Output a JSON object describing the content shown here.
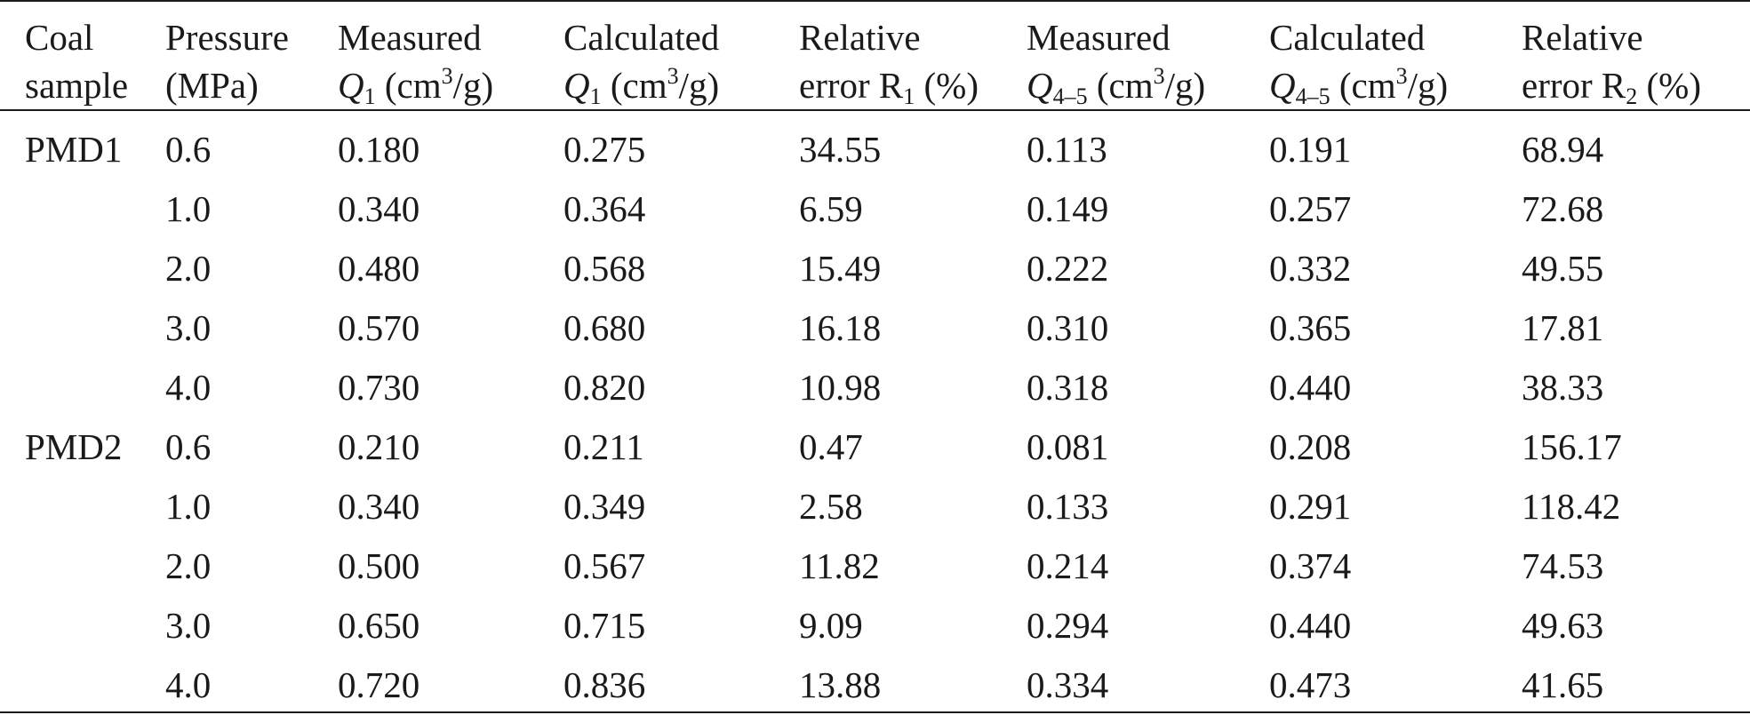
{
  "table": {
    "header": {
      "coal_sample": [
        "Coal",
        "sample"
      ],
      "pressure": [
        "Pressure",
        "(MPa)"
      ],
      "measured_q1": {
        "line1": "Measured",
        "sym": "Q",
        "sub": "1",
        "unit_pre": " (cm",
        "sup": "3",
        "unit_post": "/g)"
      },
      "calculated_q1": {
        "line1": "Calculated",
        "sym": "Q",
        "sub": "1",
        "unit_pre": " (cm",
        "sup": "3",
        "unit_post": "/g)"
      },
      "relative_error_r1": {
        "line1": "Relative",
        "pre": "error R",
        "sub": "1",
        "post": " (%)"
      },
      "measured_q45": {
        "line1": "Measured",
        "sym": "Q",
        "sub": "4–5",
        "unit_pre": " (cm",
        "sup": "3",
        "unit_post": "/g)"
      },
      "calculated_q45": {
        "line1": "Calculated",
        "sym": "Q",
        "sub": "4–5",
        "unit_pre": " (cm",
        "sup": "3",
        "unit_post": "/g)"
      },
      "relative_error_r2": {
        "line1": "Relative",
        "pre": "error R",
        "sub": "2",
        "post": " (%)"
      }
    },
    "rows": [
      [
        "PMD1",
        "0.6",
        "0.180",
        "0.275",
        "34.55",
        "0.113",
        "0.191",
        "68.94"
      ],
      [
        "",
        "1.0",
        "0.340",
        "0.364",
        "6.59",
        "0.149",
        "0.257",
        "72.68"
      ],
      [
        "",
        "2.0",
        "0.480",
        "0.568",
        "15.49",
        "0.222",
        "0.332",
        "49.55"
      ],
      [
        "",
        "3.0",
        "0.570",
        "0.680",
        "16.18",
        "0.310",
        "0.365",
        "17.81"
      ],
      [
        "",
        "4.0",
        "0.730",
        "0.820",
        "10.98",
        "0.318",
        "0.440",
        "38.33"
      ],
      [
        "PMD2",
        "0.6",
        "0.210",
        "0.211",
        "0.47",
        "0.081",
        "0.208",
        "156.17"
      ],
      [
        "",
        "1.0",
        "0.340",
        "0.349",
        "2.58",
        "0.133",
        "0.291",
        "118.42"
      ],
      [
        "",
        "2.0",
        "0.500",
        "0.567",
        "11.82",
        "0.214",
        "0.374",
        "74.53"
      ],
      [
        "",
        "3.0",
        "0.650",
        "0.715",
        "9.09",
        "0.294",
        "0.440",
        "49.63"
      ],
      [
        "",
        "4.0",
        "0.720",
        "0.836",
        "13.88",
        "0.334",
        "0.473",
        "41.65"
      ]
    ]
  }
}
